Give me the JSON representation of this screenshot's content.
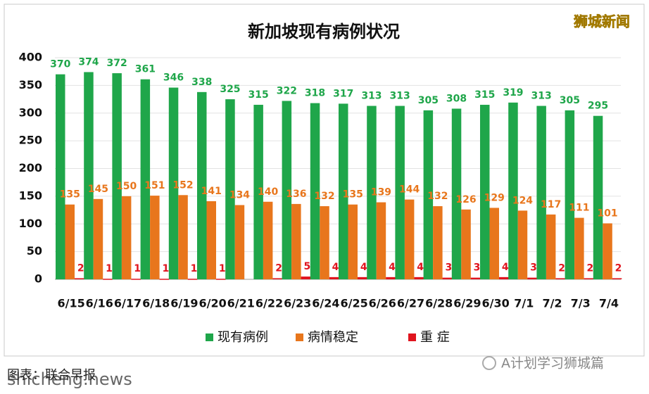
{
  "chart_data": {
    "type": "bar",
    "title": "新加坡现有病例状况",
    "categories": [
      "6/15",
      "6/16",
      "6/17",
      "6/18",
      "6/19",
      "6/20",
      "6/21",
      "6/22",
      "6/23",
      "6/24",
      "6/25",
      "6/26",
      "6/27",
      "6/28",
      "6/29",
      "6/30",
      "7/1",
      "7/2",
      "7/3",
      "7/4"
    ],
    "series": [
      {
        "name": "现有病例",
        "color": "#1fa64a",
        "values": [
          370,
          374,
          372,
          361,
          346,
          338,
          325,
          315,
          322,
          318,
          317,
          313,
          313,
          305,
          308,
          315,
          319,
          313,
          305,
          295
        ]
      },
      {
        "name": "病情稳定",
        "color": "#e8761c",
        "values": [
          135,
          145,
          150,
          151,
          152,
          141,
          134,
          140,
          136,
          132,
          135,
          139,
          144,
          132,
          126,
          129,
          124,
          117,
          111,
          101
        ]
      },
      {
        "name": "重 症",
        "color": "#e0141e",
        "values": [
          2,
          1,
          1,
          1,
          1,
          1,
          null,
          2,
          5,
          4,
          4,
          4,
          4,
          3,
          3,
          4,
          3,
          2,
          2,
          2
        ]
      }
    ],
    "ylim": [
      0,
      400
    ],
    "yticks": [
      0,
      50,
      100,
      150,
      200,
      250,
      300,
      350,
      400
    ],
    "grid": true
  },
  "watermark": "狮城新闻",
  "source": "图表：联合早报",
  "site": "shicheng.news",
  "account": "A计划学习狮城篇"
}
